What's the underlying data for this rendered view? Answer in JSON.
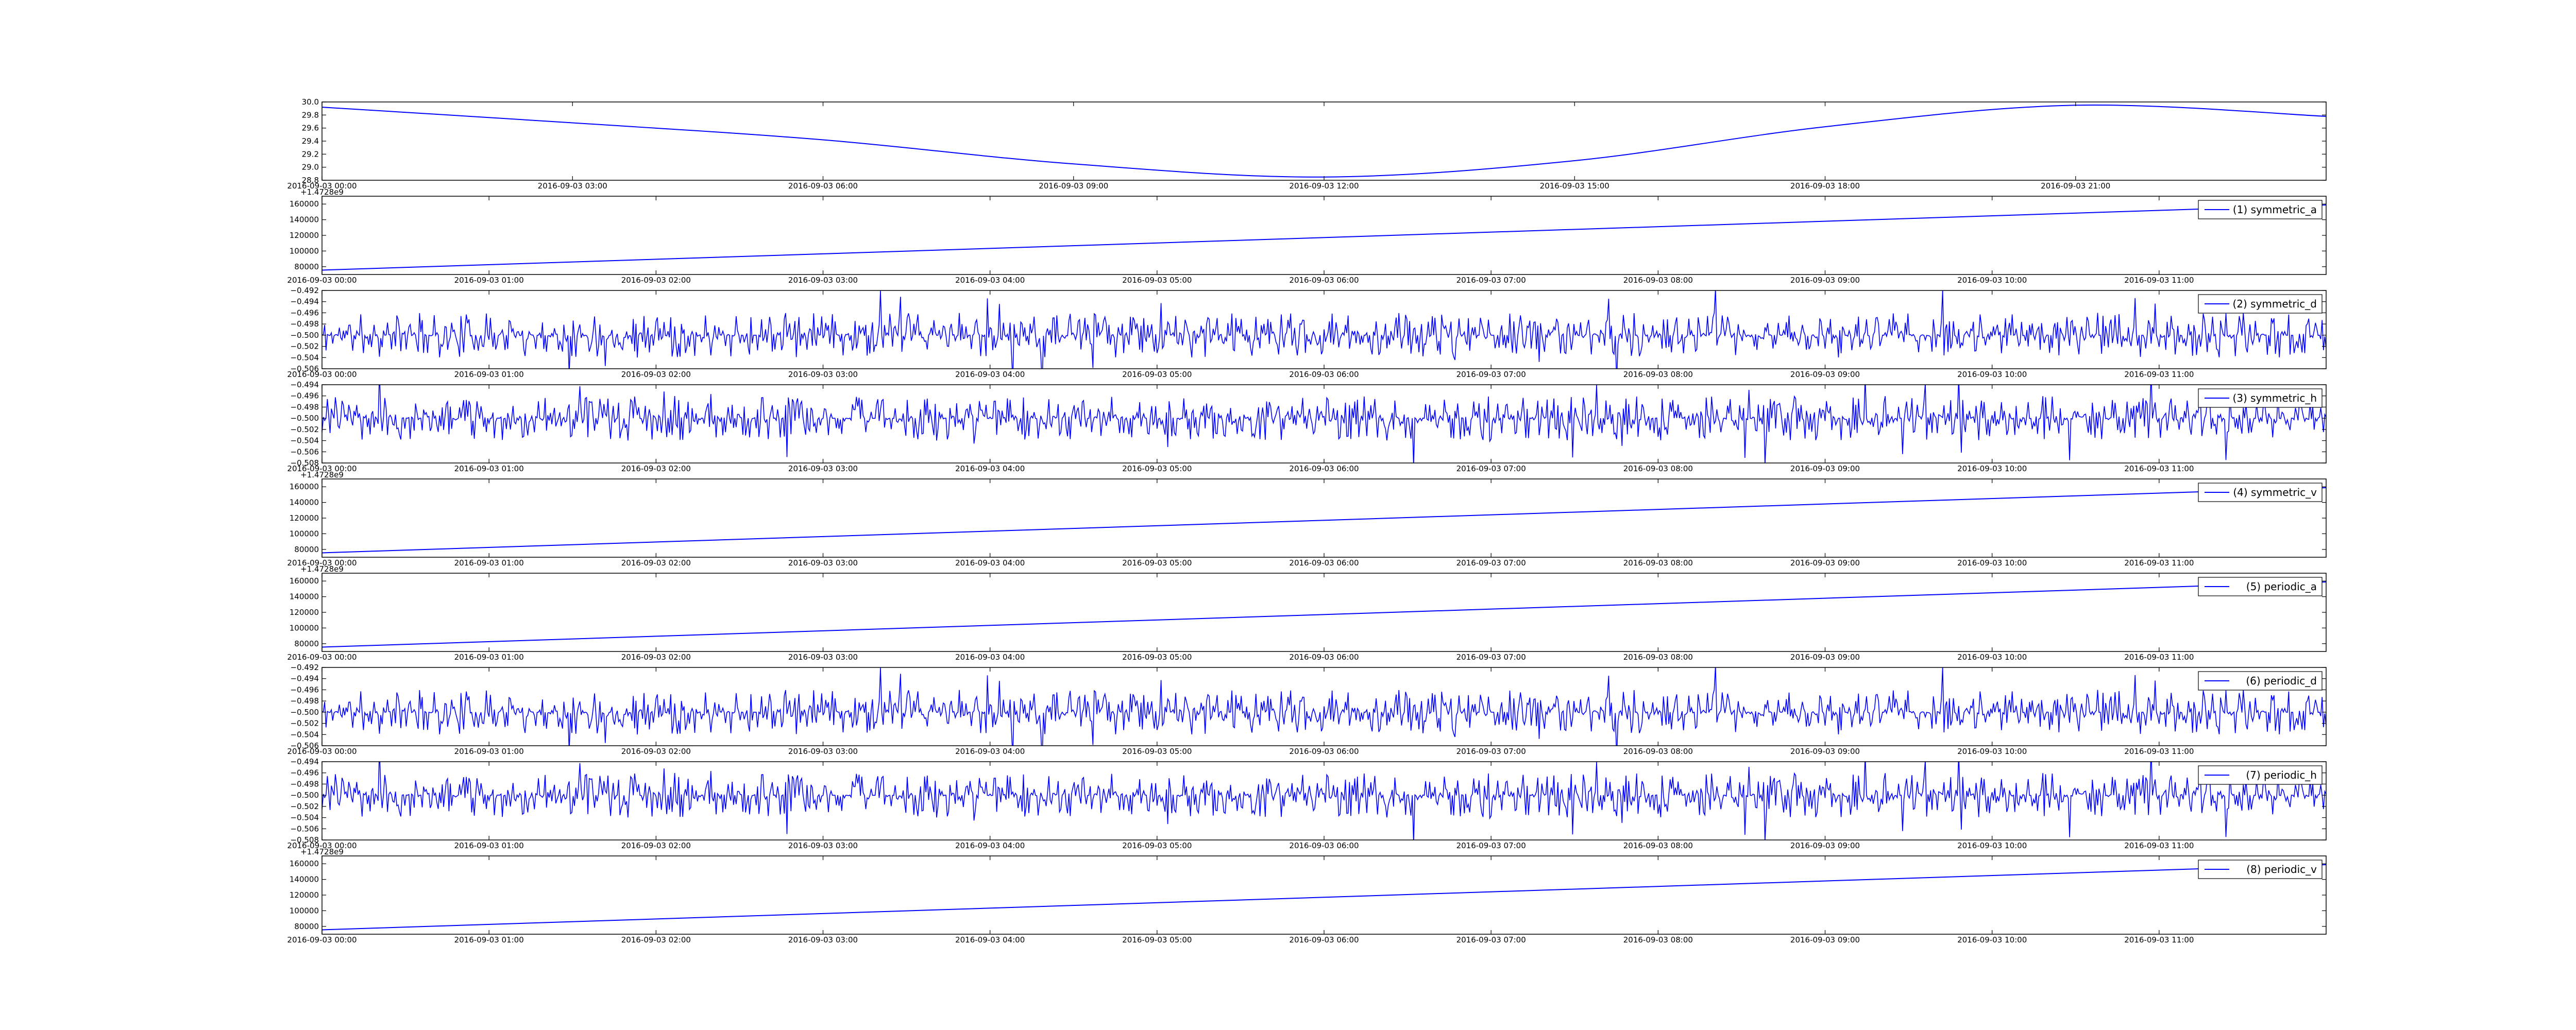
{
  "chart_data": [
    {
      "id": "panel-0",
      "type": "line",
      "title": "",
      "xlabel": "",
      "ylabel": "",
      "x_range": [
        "2016-09-03 00:00",
        "2016-09-04 00:00"
      ],
      "ylim": [
        28.8,
        30.0
      ],
      "x_ticks": [
        "2016-09-03 00:00",
        "2016-09-03 03:00",
        "2016-09-03 06:00",
        "2016-09-03 09:00",
        "2016-09-03 12:00",
        "2016-09-03 15:00",
        "2016-09-03 18:00",
        "2016-09-03 21:00"
      ],
      "y_ticks": [
        "28.8",
        "29.0",
        "29.2",
        "29.4",
        "29.6",
        "29.8",
        "30.0"
      ],
      "offset_text": "",
      "legend": null,
      "grid": false,
      "series": [
        {
          "name": "",
          "color": "#0000ff",
          "shape": "smooth",
          "x": [
            "2016-09-03 00:00",
            "2016-09-03 03:00",
            "2016-09-03 06:00",
            "2016-09-03 09:00",
            "2016-09-03 12:00",
            "2016-09-03 15:00",
            "2016-09-03 18:00",
            "2016-09-03 21:00",
            "2016-09-04 00:00"
          ],
          "y": [
            29.92,
            29.68,
            29.42,
            29.05,
            28.85,
            29.1,
            29.62,
            29.95,
            29.78
          ]
        }
      ]
    },
    {
      "id": "panel-1",
      "type": "line",
      "title": "",
      "xlabel": "",
      "ylabel": "",
      "x_range": [
        "2016-09-03 00:00",
        "2016-09-03 12:00"
      ],
      "ylim": [
        70000,
        170000
      ],
      "x_ticks": [
        "2016-09-03 00:00",
        "2016-09-03 01:00",
        "2016-09-03 02:00",
        "2016-09-03 03:00",
        "2016-09-03 04:00",
        "2016-09-03 05:00",
        "2016-09-03 06:00",
        "2016-09-03 07:00",
        "2016-09-03 08:00",
        "2016-09-03 09:00",
        "2016-09-03 10:00",
        "2016-09-03 11:00"
      ],
      "y_ticks": [
        "80000",
        "100000",
        "120000",
        "140000",
        "160000"
      ],
      "offset_text": "+1.4728e9",
      "legend": {
        "label": "(1) symmetric_a",
        "position": "upper-right"
      },
      "grid": false,
      "series": [
        {
          "name": "(1) symmetric_a",
          "color": "#0000ff",
          "shape": "linear",
          "x": [
            "2016-09-03 00:00",
            "2016-09-03 12:00"
          ],
          "y": [
            75600,
            158800
          ]
        }
      ]
    },
    {
      "id": "panel-2",
      "type": "line",
      "title": "",
      "xlabel": "",
      "ylabel": "",
      "x_range": [
        "2016-09-03 00:00",
        "2016-09-03 12:00"
      ],
      "ylim": [
        -0.506,
        -0.492
      ],
      "x_ticks": [
        "2016-09-03 00:00",
        "2016-09-03 01:00",
        "2016-09-03 02:00",
        "2016-09-03 03:00",
        "2016-09-03 04:00",
        "2016-09-03 05:00",
        "2016-09-03 06:00",
        "2016-09-03 07:00",
        "2016-09-03 08:00",
        "2016-09-03 09:00",
        "2016-09-03 10:00",
        "2016-09-03 11:00"
      ],
      "y_ticks": [
        "−0.506",
        "−0.504",
        "−0.502",
        "−0.500",
        "−0.498",
        "−0.496",
        "−0.494",
        "−0.492"
      ],
      "offset_text": "",
      "legend": {
        "label": "(2) symmetric_d",
        "position": "upper-right"
      },
      "grid": false,
      "series": [
        {
          "name": "(2) symmetric_d",
          "color": "#0000ff",
          "shape": "noise",
          "x": [
            "2016-09-03 00:00",
            "2016-09-03 12:00"
          ],
          "baseline": -0.5,
          "amplitude": 0.004,
          "seed": 11
        }
      ]
    },
    {
      "id": "panel-3",
      "type": "line",
      "title": "",
      "xlabel": "",
      "ylabel": "",
      "x_range": [
        "2016-09-03 00:00",
        "2016-09-03 12:00"
      ],
      "ylim": [
        -0.508,
        -0.494
      ],
      "x_ticks": [
        "2016-09-03 00:00",
        "2016-09-03 01:00",
        "2016-09-03 02:00",
        "2016-09-03 03:00",
        "2016-09-03 04:00",
        "2016-09-03 05:00",
        "2016-09-03 06:00",
        "2016-09-03 07:00",
        "2016-09-03 08:00",
        "2016-09-03 09:00",
        "2016-09-03 10:00",
        "2016-09-03 11:00"
      ],
      "y_ticks": [
        "−0.508",
        "−0.506",
        "−0.504",
        "−0.502",
        "−0.500",
        "−0.498",
        "−0.496",
        "−0.494"
      ],
      "offset_text": "",
      "legend": {
        "label": "(3) symmetric_h",
        "position": "upper-right"
      },
      "grid": false,
      "series": [
        {
          "name": "(3) symmetric_h",
          "color": "#0000ff",
          "shape": "noise",
          "x": [
            "2016-09-03 00:00",
            "2016-09-03 12:00"
          ],
          "baseline": -0.5,
          "amplitude": 0.004,
          "seed": 23
        }
      ]
    },
    {
      "id": "panel-4",
      "type": "line",
      "title": "",
      "xlabel": "",
      "ylabel": "",
      "x_range": [
        "2016-09-03 00:00",
        "2016-09-03 12:00"
      ],
      "ylim": [
        70000,
        170000
      ],
      "x_ticks": [
        "2016-09-03 00:00",
        "2016-09-03 01:00",
        "2016-09-03 02:00",
        "2016-09-03 03:00",
        "2016-09-03 04:00",
        "2016-09-03 05:00",
        "2016-09-03 06:00",
        "2016-09-03 07:00",
        "2016-09-03 08:00",
        "2016-09-03 09:00",
        "2016-09-03 10:00",
        "2016-09-03 11:00"
      ],
      "y_ticks": [
        "80000",
        "100000",
        "120000",
        "140000",
        "160000"
      ],
      "offset_text": "+1.4728e9",
      "legend": {
        "label": "(4) symmetric_v",
        "position": "upper-right"
      },
      "grid": false,
      "series": [
        {
          "name": "(4) symmetric_v",
          "color": "#0000ff",
          "shape": "linear",
          "x": [
            "2016-09-03 00:00",
            "2016-09-03 12:00"
          ],
          "y": [
            75600,
            158800
          ]
        }
      ]
    },
    {
      "id": "panel-5",
      "type": "line",
      "title": "",
      "xlabel": "",
      "ylabel": "",
      "x_range": [
        "2016-09-03 00:00",
        "2016-09-03 12:00"
      ],
      "ylim": [
        70000,
        170000
      ],
      "x_ticks": [
        "2016-09-03 00:00",
        "2016-09-03 01:00",
        "2016-09-03 02:00",
        "2016-09-03 03:00",
        "2016-09-03 04:00",
        "2016-09-03 05:00",
        "2016-09-03 06:00",
        "2016-09-03 07:00",
        "2016-09-03 08:00",
        "2016-09-03 09:00",
        "2016-09-03 10:00",
        "2016-09-03 11:00"
      ],
      "y_ticks": [
        "80000",
        "100000",
        "120000",
        "140000",
        "160000"
      ],
      "offset_text": "+1.4728e9",
      "legend": {
        "label": "(5) periodic_a",
        "position": "upper-right"
      },
      "grid": false,
      "series": [
        {
          "name": "(5) periodic_a",
          "color": "#0000ff",
          "shape": "linear",
          "x": [
            "2016-09-03 00:00",
            "2016-09-03 12:00"
          ],
          "y": [
            75600,
            158800
          ]
        }
      ]
    },
    {
      "id": "panel-6",
      "type": "line",
      "title": "",
      "xlabel": "",
      "ylabel": "",
      "x_range": [
        "2016-09-03 00:00",
        "2016-09-03 12:00"
      ],
      "ylim": [
        -0.506,
        -0.492
      ],
      "x_ticks": [
        "2016-09-03 00:00",
        "2016-09-03 01:00",
        "2016-09-03 02:00",
        "2016-09-03 03:00",
        "2016-09-03 04:00",
        "2016-09-03 05:00",
        "2016-09-03 06:00",
        "2016-09-03 07:00",
        "2016-09-03 08:00",
        "2016-09-03 09:00",
        "2016-09-03 10:00",
        "2016-09-03 11:00"
      ],
      "y_ticks": [
        "−0.506",
        "−0.504",
        "−0.502",
        "−0.500",
        "−0.498",
        "−0.496",
        "−0.494",
        "−0.492"
      ],
      "offset_text": "",
      "legend": {
        "label": "(6) periodic_d",
        "position": "upper-right"
      },
      "grid": false,
      "series": [
        {
          "name": "(6) periodic_d",
          "color": "#0000ff",
          "shape": "noise",
          "x": [
            "2016-09-03 00:00",
            "2016-09-03 12:00"
          ],
          "baseline": -0.5,
          "amplitude": 0.004,
          "seed": 11
        }
      ]
    },
    {
      "id": "panel-7",
      "type": "line",
      "title": "",
      "xlabel": "",
      "ylabel": "",
      "x_range": [
        "2016-09-03 00:00",
        "2016-09-03 12:00"
      ],
      "ylim": [
        -0.508,
        -0.494
      ],
      "x_ticks": [
        "2016-09-03 00:00",
        "2016-09-03 01:00",
        "2016-09-03 02:00",
        "2016-09-03 03:00",
        "2016-09-03 04:00",
        "2016-09-03 05:00",
        "2016-09-03 06:00",
        "2016-09-03 07:00",
        "2016-09-03 08:00",
        "2016-09-03 09:00",
        "2016-09-03 10:00",
        "2016-09-03 11:00"
      ],
      "y_ticks": [
        "−0.508",
        "−0.506",
        "−0.504",
        "−0.502",
        "−0.500",
        "−0.498",
        "−0.496",
        "−0.494"
      ],
      "offset_text": "",
      "legend": {
        "label": "(7) periodic_h",
        "position": "upper-right"
      },
      "grid": false,
      "series": [
        {
          "name": "(7) periodic_h",
          "color": "#0000ff",
          "shape": "noise",
          "x": [
            "2016-09-03 00:00",
            "2016-09-03 12:00"
          ],
          "baseline": -0.5,
          "amplitude": 0.004,
          "seed": 23
        }
      ]
    },
    {
      "id": "panel-8",
      "type": "line",
      "title": "",
      "xlabel": "",
      "ylabel": "",
      "x_range": [
        "2016-09-03 00:00",
        "2016-09-03 12:00"
      ],
      "ylim": [
        70000,
        170000
      ],
      "x_ticks": [
        "2016-09-03 00:00",
        "2016-09-03 01:00",
        "2016-09-03 02:00",
        "2016-09-03 03:00",
        "2016-09-03 04:00",
        "2016-09-03 05:00",
        "2016-09-03 06:00",
        "2016-09-03 07:00",
        "2016-09-03 08:00",
        "2016-09-03 09:00",
        "2016-09-03 10:00",
        "2016-09-03 11:00"
      ],
      "y_ticks": [
        "80000",
        "100000",
        "120000",
        "140000",
        "160000"
      ],
      "offset_text": "+1.4728e9",
      "legend": {
        "label": "(8) periodic_v",
        "position": "upper-right"
      },
      "grid": false,
      "series": [
        {
          "name": "(8) periodic_v",
          "color": "#0000ff",
          "shape": "linear",
          "x": [
            "2016-09-03 00:00",
            "2016-09-03 12:00"
          ],
          "y": [
            75600,
            158800
          ]
        }
      ]
    }
  ]
}
